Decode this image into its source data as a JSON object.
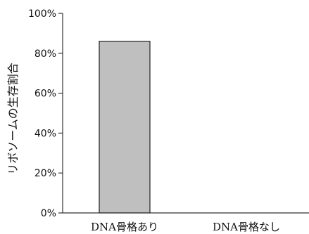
{
  "chart_data": {
    "type": "bar",
    "categories": [
      "DNA骨格あり",
      "DNA骨格なし"
    ],
    "values": [
      86,
      0
    ],
    "ylabel": "リボソームの生存割合",
    "xlabel": "",
    "ylim": [
      0,
      100
    ],
    "yticks": [
      0,
      20,
      40,
      60,
      80,
      100
    ],
    "ytick_labels": [
      "0%",
      "20%",
      "40%",
      "60%",
      "80%",
      "100%"
    ],
    "grid": false,
    "legend": "none",
    "bar_color": "#bfbfbf",
    "bar_edge_color": "#222222",
    "axis_color": "#333333"
  }
}
